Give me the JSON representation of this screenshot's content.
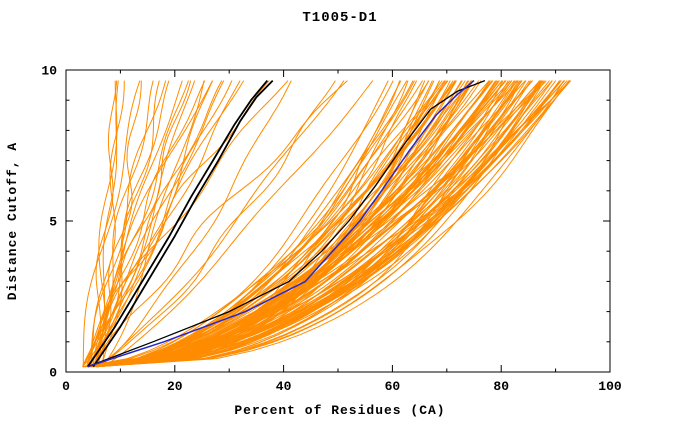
{
  "chart_data": {
    "type": "line",
    "title": "T1005-D1",
    "xlabel": "Percent of Residues (CA)",
    "ylabel": "Distance Cutoff, A",
    "xlim": [
      0,
      100
    ],
    "ylim": [
      0,
      10
    ],
    "x_ticks": [
      0,
      20,
      40,
      60,
      80,
      100
    ],
    "y_ticks": [
      0,
      5,
      10
    ],
    "x_minor_step": 10,
    "y_minor_step": 1,
    "grid": false,
    "legend": "none",
    "axis_color": "#000000",
    "background_color": "#ffffff",
    "ensemble": {
      "description": "many orange model curves (cumulative percent of CA residues under each distance cutoff)",
      "color": "#FF8C00",
      "width": 1,
      "seed": 42,
      "y_start": 0.18,
      "y_end": 9.65,
      "groups": [
        {
          "count": 105,
          "end_min": 58,
          "end_max": 93,
          "end_pow": 0.6,
          "p_min": 0.36,
          "p_max": 0.6,
          "start_min": 3,
          "start_max": 6,
          "wiggle": 1.4
        },
        {
          "count": 30,
          "end_min": 9,
          "end_max": 57,
          "end_pow": 1.1,
          "p_min": 0.7,
          "p_max": 1.35,
          "start_min": 3,
          "start_max": 7,
          "wiggle": 2.2
        }
      ]
    },
    "highlight_series": [
      {
        "name": "black-model-a",
        "color": "#000000",
        "width": 1.8,
        "points": [
          [
            4,
            0.18
          ],
          [
            9,
            1.5
          ],
          [
            14,
            3
          ],
          [
            19,
            4.5
          ],
          [
            23,
            5.8
          ],
          [
            27,
            7
          ],
          [
            31,
            8.2
          ],
          [
            34,
            9
          ],
          [
            37,
            9.65
          ]
        ]
      },
      {
        "name": "black-model-b",
        "color": "#000000",
        "width": 1.8,
        "points": [
          [
            5,
            0.18
          ],
          [
            10,
            1.5
          ],
          [
            15,
            3
          ],
          [
            20,
            4.5
          ],
          [
            24,
            5.8
          ],
          [
            28,
            7
          ],
          [
            32,
            8.3
          ],
          [
            35,
            9.1
          ],
          [
            38,
            9.65
          ]
        ]
      },
      {
        "name": "black-model-c",
        "color": "#000000",
        "width": 1.3,
        "points": [
          [
            4,
            0.18
          ],
          [
            16,
            1
          ],
          [
            30,
            2
          ],
          [
            41,
            3
          ],
          [
            47,
            4
          ],
          [
            52,
            5
          ],
          [
            57,
            6.2
          ],
          [
            62,
            7.5
          ],
          [
            67,
            8.7
          ],
          [
            72,
            9.3
          ],
          [
            77,
            9.65
          ]
        ]
      },
      {
        "name": "blue-model",
        "color": "#2828C8",
        "width": 1.5,
        "points": [
          [
            4,
            0.18
          ],
          [
            18,
            1
          ],
          [
            33,
            2
          ],
          [
            44,
            3
          ],
          [
            49,
            4
          ],
          [
            54,
            5
          ],
          [
            58,
            6
          ],
          [
            63,
            7.3
          ],
          [
            68,
            8.5
          ],
          [
            72,
            9.2
          ],
          [
            75,
            9.65
          ]
        ]
      }
    ]
  }
}
